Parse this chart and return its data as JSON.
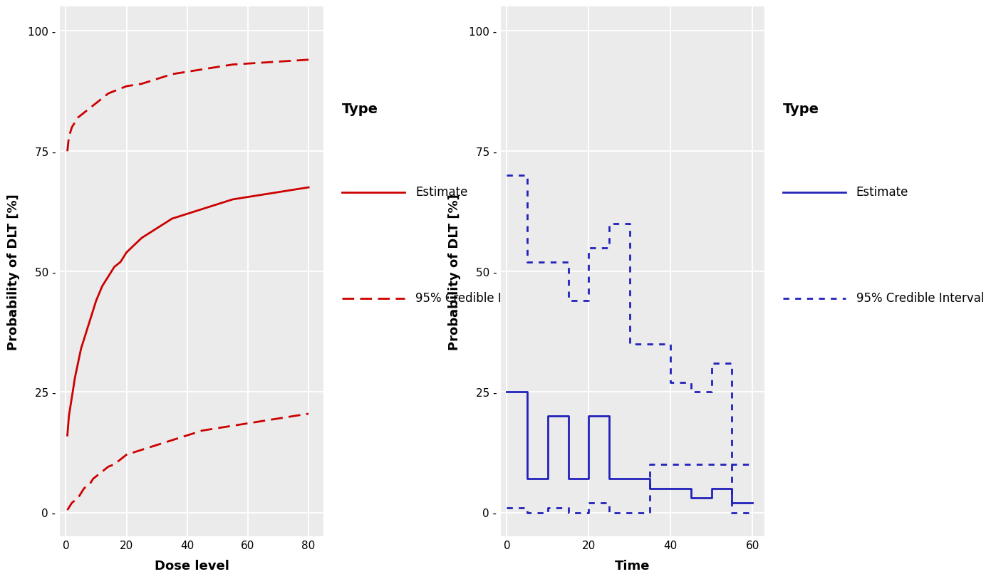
{
  "plot1": {
    "xlabel": "Dose level",
    "ylabel": "Probability of DLT [%]",
    "xlim": [
      -2,
      85
    ],
    "ylim": [
      -5,
      105
    ],
    "xticks": [
      0,
      20,
      40,
      60,
      80
    ],
    "yticks": [
      0,
      25,
      50,
      75,
      100
    ],
    "estimate_color": "#CC0000",
    "ci_color": "#CC0000",
    "bg_color": "#EBEBEB",
    "estimate_x": [
      0.5,
      1,
      2,
      3,
      4,
      5,
      6,
      7,
      8,
      9,
      10,
      12,
      14,
      16,
      18,
      20,
      25,
      30,
      35,
      40,
      45,
      50,
      55,
      60,
      65,
      70,
      75,
      80
    ],
    "estimate_y": [
      16,
      20,
      24,
      28,
      31,
      34,
      36,
      38,
      40,
      42,
      44,
      47,
      49,
      51,
      52,
      54,
      57,
      59,
      61,
      62,
      63,
      64,
      65,
      65.5,
      66,
      66.5,
      67,
      67.5
    ],
    "ci_upper_x": [
      0.5,
      1,
      2,
      3,
      4,
      5,
      6,
      7,
      8,
      9,
      10,
      12,
      14,
      16,
      18,
      20,
      25,
      30,
      35,
      40,
      45,
      50,
      55,
      60,
      65,
      70,
      75,
      80
    ],
    "ci_upper_y": [
      75,
      78,
      80,
      81,
      82,
      82.5,
      83,
      83.5,
      84,
      84.5,
      85,
      86,
      87,
      87.5,
      88,
      88.5,
      89,
      90,
      91,
      91.5,
      92,
      92.5,
      93,
      93.2,
      93.4,
      93.6,
      93.8,
      94
    ],
    "ci_lower_x": [
      0.5,
      1,
      2,
      3,
      4,
      5,
      6,
      7,
      8,
      9,
      10,
      12,
      14,
      16,
      18,
      20,
      25,
      30,
      35,
      40,
      45,
      50,
      55,
      60,
      65,
      70,
      75,
      80
    ],
    "ci_lower_y": [
      0.5,
      1,
      2,
      2.5,
      3,
      4,
      5,
      5.5,
      6,
      7,
      7.5,
      8.5,
      9.5,
      10,
      11,
      12,
      13,
      14,
      15,
      16,
      17,
      17.5,
      18,
      18.5,
      19,
      19.5,
      20,
      20.5
    ],
    "legend_title": "Type",
    "legend_estimate": "Estimate",
    "legend_ci": "95% Credible Interval"
  },
  "plot2": {
    "xlabel": "Time",
    "ylabel": "Probability of DLT [%]",
    "xlim": [
      -1.5,
      63
    ],
    "ylim": [
      -5,
      105
    ],
    "xticks": [
      0,
      20,
      40,
      60
    ],
    "yticks": [
      0,
      25,
      50,
      75,
      100
    ],
    "estimate_color": "#2222BB",
    "ci_color": "#2222BB",
    "bg_color": "#EBEBEB",
    "estimate_x": [
      0,
      5,
      5,
      10,
      10,
      15,
      15,
      20,
      20,
      25,
      25,
      30,
      30,
      35,
      35,
      40,
      40,
      45,
      45,
      50,
      50,
      55,
      55,
      60
    ],
    "estimate_y": [
      25,
      25,
      7,
      7,
      20,
      20,
      7,
      7,
      20,
      20,
      7,
      7,
      7,
      7,
      5,
      5,
      5,
      5,
      3,
      3,
      5,
      5,
      2,
      2
    ],
    "ci_upper_x": [
      0,
      5,
      5,
      10,
      10,
      15,
      15,
      20,
      20,
      25,
      25,
      30,
      30,
      35,
      35,
      40,
      40,
      45,
      45,
      50,
      50,
      55,
      55,
      60
    ],
    "ci_upper_y": [
      70,
      70,
      52,
      52,
      52,
      52,
      44,
      44,
      55,
      55,
      60,
      60,
      35,
      35,
      35,
      35,
      27,
      27,
      25,
      25,
      31,
      31,
      10,
      10
    ],
    "ci_lower_x": [
      0,
      5,
      5,
      10,
      10,
      15,
      15,
      20,
      20,
      25,
      25,
      30,
      30,
      35,
      35,
      40,
      40,
      45,
      45,
      50,
      50,
      55,
      55,
      60
    ],
    "ci_lower_y": [
      1,
      1,
      0,
      0,
      1,
      1,
      0,
      0,
      2,
      2,
      0,
      0,
      0,
      0,
      10,
      10,
      10,
      10,
      10,
      10,
      10,
      10,
      0,
      0
    ],
    "legend_title": "Type",
    "legend_estimate": "Estimate",
    "legend_ci": "95% Credible Interval"
  },
  "figure": {
    "bg_color": "#FFFFFF",
    "label_fontsize": 13,
    "tick_fontsize": 11,
    "legend_fontsize": 12,
    "legend_title_fontsize": 14
  }
}
